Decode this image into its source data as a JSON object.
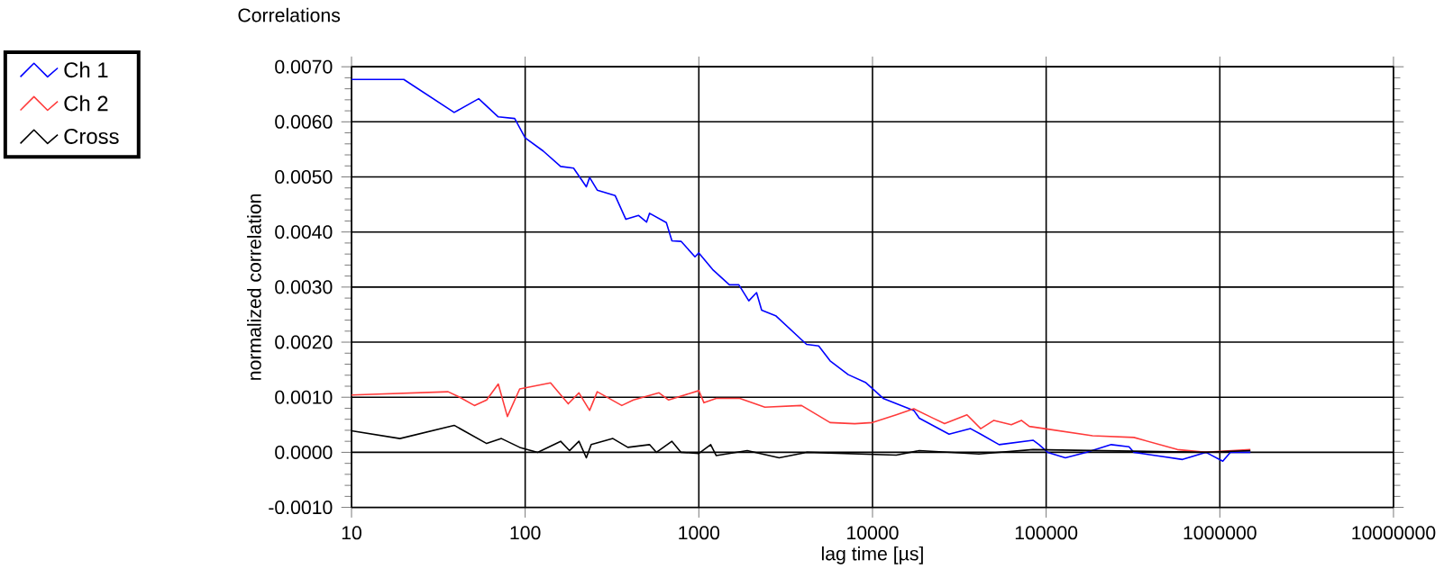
{
  "chart_data": {
    "type": "line",
    "title": "Correlations",
    "xlabel": "lag time [µs]",
    "ylabel": "normalized correlation",
    "log": "x",
    "grid": true,
    "legend": "top left",
    "marker": "none",
    "line_style": "solid",
    "xlim": [
      10,
      10000000
    ],
    "xticks": [
      10,
      100,
      1000,
      10000,
      100000,
      1000000,
      10000000
    ],
    "ylim": [
      -0.001,
      0.007
    ],
    "yticks": [
      {
        "value": -0.001,
        "label": "-0.0010"
      },
      {
        "value": 0,
        "label": "0.0000"
      },
      {
        "value": 0.001,
        "label": "0.0010"
      },
      {
        "value": 0.002,
        "label": "0.0020"
      },
      {
        "value": 0.003,
        "label": "0.0030"
      },
      {
        "value": 0.004,
        "label": "0.0040"
      },
      {
        "value": 0.005,
        "label": "0.0050"
      },
      {
        "value": 0.006,
        "label": "0.0060"
      },
      {
        "value": 0.007,
        "label": "0.0070"
      }
    ],
    "series": [
      {
        "name": "Ch 1",
        "color": "#0000ff",
        "x": [
          10,
          20,
          39,
          54,
          70,
          87,
          100,
          127,
          160,
          190,
          225,
          235,
          260,
          330,
          380,
          450,
          500,
          520,
          650,
          700,
          790,
          950,
          1000,
          1200,
          1500,
          1700,
          1940,
          2150,
          2300,
          2770,
          4170,
          4900,
          5700,
          7250,
          9100,
          10300,
          11500,
          17300,
          18600,
          27600,
          36700,
          42000,
          53600,
          84000,
          91000,
          102000,
          129000,
          170000,
          237000,
          300000,
          320000,
          610000,
          830000,
          1040000,
          1150000,
          1500000
        ],
        "values": [
          0.00677,
          0.00677,
          0.00617,
          0.00642,
          0.00609,
          0.00606,
          0.00571,
          0.00547,
          0.00519,
          0.00516,
          0.00482,
          0.00499,
          0.00476,
          0.00466,
          0.00423,
          0.0043,
          0.00418,
          0.00434,
          0.00417,
          0.00384,
          0.00383,
          0.00355,
          0.00362,
          0.00332,
          0.00304,
          0.00304,
          0.00275,
          0.0029,
          0.00258,
          0.00248,
          0.00196,
          0.00193,
          0.00166,
          0.00141,
          0.00127,
          0.00112,
          0.00098,
          0.00076,
          0.00062,
          0.00033,
          0.00043,
          0.00033,
          0.00014,
          0.00022,
          0.00014,
          0.0,
          -0.0001,
          0.0,
          0.00014,
          0.0001,
          0.0,
          -0.00013,
          0.0,
          -0.00016,
          0.0,
          0.0
        ]
      },
      {
        "name": "Ch 2",
        "color": "#ff3b3b",
        "x": [
          10,
          36,
          42,
          51,
          60,
          70,
          79,
          93,
          140,
          177,
          204,
          235,
          260,
          360,
          420,
          590,
          670,
          1000,
          1070,
          1260,
          1720,
          2400,
          3900,
          5700,
          7900,
          10000,
          13700,
          17300,
          22000,
          26000,
          35000,
          42000,
          50000,
          63000,
          72000,
          80000,
          98000,
          185000,
          320000,
          570000,
          830000,
          1500000
        ],
        "values": [
          0.00104,
          0.0011,
          0.001,
          0.00085,
          0.00095,
          0.00124,
          0.00065,
          0.00115,
          0.00126,
          0.00088,
          0.00108,
          0.00076,
          0.0011,
          0.00085,
          0.00095,
          0.00108,
          0.00095,
          0.00112,
          0.0009,
          0.00098,
          0.00098,
          0.00082,
          0.00085,
          0.00054,
          0.00052,
          0.00054,
          0.00068,
          0.00079,
          0.00063,
          0.00052,
          0.00068,
          0.00043,
          0.00058,
          0.0005,
          0.00058,
          0.00047,
          0.00043,
          0.0003,
          0.00027,
          5e-05,
          0.0,
          5e-05
        ]
      },
      {
        "name": "Cross",
        "color": "#000000",
        "x": [
          10,
          19,
          39,
          60,
          73,
          93,
          118,
          160,
          180,
          204,
          225,
          240,
          320,
          390,
          520,
          570,
          700,
          790,
          1000,
          1170,
          1260,
          1900,
          2900,
          4170,
          13700,
          18600,
          41000,
          84000,
          830000,
          1500000
        ],
        "values": [
          0.00039,
          0.00025,
          0.00049,
          0.00016,
          0.00025,
          9e-05,
          0.0,
          0.0002,
          3e-05,
          0.0002,
          -0.0001,
          0.00014,
          0.00025,
          9e-05,
          0.00014,
          0.0,
          0.0002,
          0.0,
          -2e-05,
          0.00014,
          -6e-05,
          3e-05,
          -0.0001,
          0.0,
          -5e-05,
          3e-05,
          -3e-05,
          5e-05,
          0.0,
          3e-05
        ]
      }
    ]
  }
}
